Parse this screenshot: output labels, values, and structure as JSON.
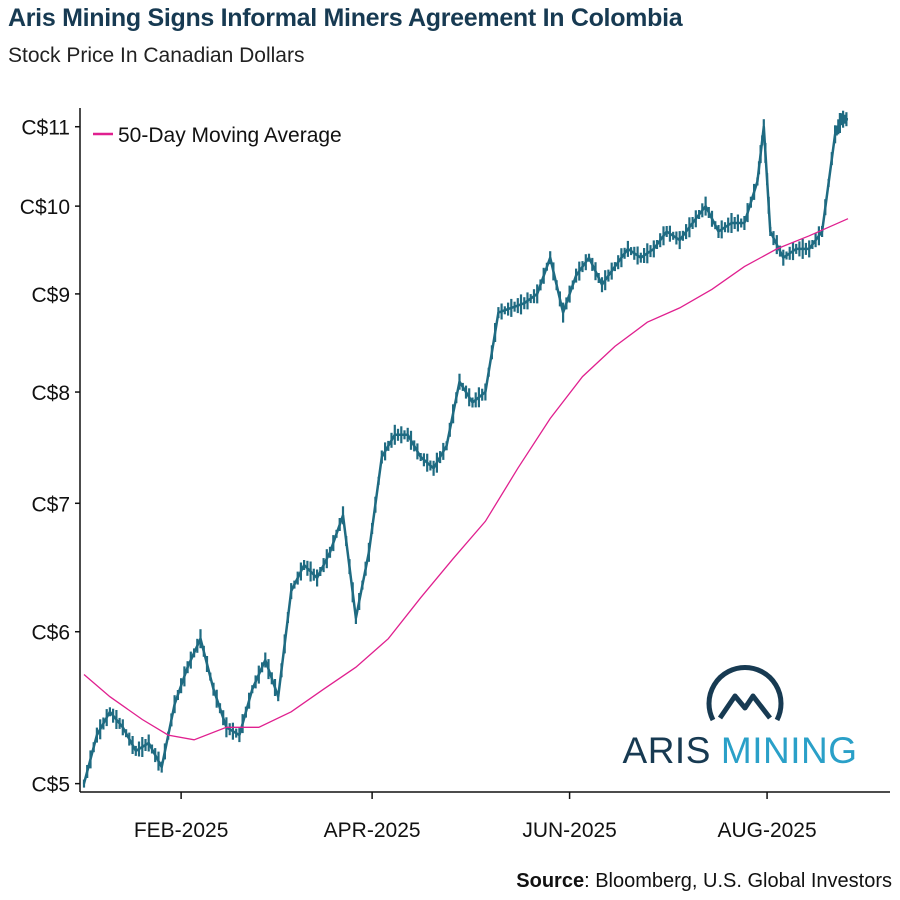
{
  "header": {
    "title": "Aris Mining Signs Informal Miners Agreement In Colombia",
    "subtitle": "Stock Price In Canadian Dollars"
  },
  "source": {
    "label": "Source",
    "text": ": Bloomberg, U.S. Global Investors"
  },
  "logo": {
    "word1": "ARIS",
    "word2": "MINING",
    "color_dark": "#173a52",
    "color_light": "#2aa0c8"
  },
  "colors": {
    "price": "#1f6b82",
    "moving_average": "#e0208f",
    "axis": "#111111"
  },
  "chart_data": {
    "type": "line",
    "y_scale": "log",
    "ylim": [
      4.95,
      11.25
    ],
    "x_range": [
      "2025-01-02",
      "2025-08-26"
    ],
    "yticks": [
      5,
      6,
      7,
      8,
      9,
      10,
      11
    ],
    "ytick_labels": [
      "C$5",
      "C$6",
      "C$7",
      "C$8",
      "C$9",
      "C$10",
      "C$11"
    ],
    "xticks": [
      "2025-02-01",
      "2025-04-01",
      "2025-06-01",
      "2025-08-01"
    ],
    "xtick_labels": [
      "FEB-2025",
      "APR-2025",
      "JUN-2025",
      "AUG-2025"
    ],
    "legend": {
      "position": "top-left",
      "entries": [
        "50-Day Moving Average"
      ]
    },
    "series": [
      {
        "name": "Price",
        "style": "daily bars",
        "x": [
          "2025-01-02",
          "2025-01-06",
          "2025-01-10",
          "2025-01-14",
          "2025-01-18",
          "2025-01-22",
          "2025-01-26",
          "2025-01-30",
          "2025-02-03",
          "2025-02-07",
          "2025-02-11",
          "2025-02-15",
          "2025-02-19",
          "2025-02-23",
          "2025-02-27",
          "2025-03-03",
          "2025-03-07",
          "2025-03-11",
          "2025-03-15",
          "2025-03-19",
          "2025-03-23",
          "2025-03-27",
          "2025-03-31",
          "2025-04-04",
          "2025-04-08",
          "2025-04-12",
          "2025-04-16",
          "2025-04-20",
          "2025-04-24",
          "2025-04-28",
          "2025-05-02",
          "2025-05-06",
          "2025-05-10",
          "2025-05-14",
          "2025-05-18",
          "2025-05-22",
          "2025-05-26",
          "2025-05-30",
          "2025-06-03",
          "2025-06-07",
          "2025-06-11",
          "2025-06-15",
          "2025-06-19",
          "2025-06-23",
          "2025-06-27",
          "2025-07-01",
          "2025-07-05",
          "2025-07-09",
          "2025-07-13",
          "2025-07-17",
          "2025-07-21",
          "2025-07-25",
          "2025-07-29",
          "2025-07-31",
          "2025-08-02",
          "2025-08-06",
          "2025-08-10",
          "2025-08-14",
          "2025-08-18",
          "2025-08-22",
          "2025-08-24",
          "2025-08-26"
        ],
        "values": [
          5.0,
          5.3,
          5.45,
          5.35,
          5.2,
          5.25,
          5.1,
          5.5,
          5.75,
          5.95,
          5.6,
          5.35,
          5.3,
          5.6,
          5.8,
          5.55,
          6.3,
          6.5,
          6.4,
          6.6,
          6.9,
          6.1,
          6.6,
          7.4,
          7.6,
          7.6,
          7.4,
          7.3,
          7.5,
          8.1,
          7.9,
          8.0,
          8.8,
          8.85,
          8.9,
          9.0,
          9.4,
          8.8,
          9.2,
          9.4,
          9.1,
          9.3,
          9.5,
          9.4,
          9.5,
          9.7,
          9.6,
          9.8,
          10.0,
          9.7,
          9.8,
          9.8,
          10.3,
          11.0,
          9.7,
          9.4,
          9.5,
          9.5,
          9.7,
          10.9,
          11.1,
          11.1
        ]
      },
      {
        "name": "50-Day Moving Average",
        "x": [
          "2025-01-02",
          "2025-01-10",
          "2025-01-20",
          "2025-01-28",
          "2025-02-05",
          "2025-02-15",
          "2025-02-25",
          "2025-03-07",
          "2025-03-17",
          "2025-03-27",
          "2025-04-06",
          "2025-04-16",
          "2025-04-26",
          "2025-05-06",
          "2025-05-16",
          "2025-05-26",
          "2025-06-05",
          "2025-06-15",
          "2025-06-25",
          "2025-07-05",
          "2025-07-15",
          "2025-07-25",
          "2025-08-04",
          "2025-08-14",
          "2025-08-26"
        ],
        "values": [
          5.7,
          5.55,
          5.4,
          5.3,
          5.27,
          5.35,
          5.35,
          5.45,
          5.6,
          5.75,
          5.95,
          6.25,
          6.55,
          6.85,
          7.3,
          7.75,
          8.15,
          8.45,
          8.7,
          8.85,
          9.05,
          9.3,
          9.5,
          9.65,
          9.85
        ]
      }
    ]
  }
}
